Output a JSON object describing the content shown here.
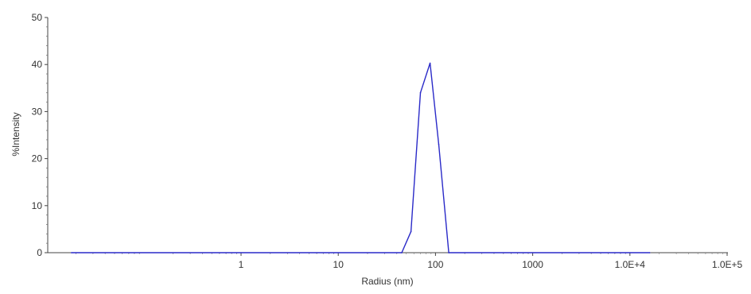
{
  "chart_data": {
    "type": "line",
    "title": "",
    "xlabel": "Radius (nm)",
    "ylabel": "%Intensity",
    "x_scale": "log",
    "xlim": [
      0.01,
      100000
    ],
    "ylim": [
      0,
      50
    ],
    "grid": false,
    "x_ticks": [
      {
        "value": 1,
        "label": "1"
      },
      {
        "value": 10,
        "label": "10"
      },
      {
        "value": 100,
        "label": "100"
      },
      {
        "value": 1000,
        "label": "1000"
      },
      {
        "value": 10000,
        "label": "1.0E+4"
      },
      {
        "value": 100000,
        "label": "1.0E+5"
      }
    ],
    "y_ticks": [
      {
        "value": 0,
        "label": "0"
      },
      {
        "value": 10,
        "label": "10"
      },
      {
        "value": 20,
        "label": "20"
      },
      {
        "value": 30,
        "label": "30"
      },
      {
        "value": 40,
        "label": "40"
      },
      {
        "value": 50,
        "label": "50"
      }
    ],
    "series": [
      {
        "color": "#2a2ac8",
        "x": [
          0.018,
          45,
          56,
          70,
          88,
          108,
          137,
          16000
        ],
        "y": [
          0,
          0,
          4.5,
          34,
          40.3,
          23,
          0,
          0
        ]
      }
    ]
  }
}
